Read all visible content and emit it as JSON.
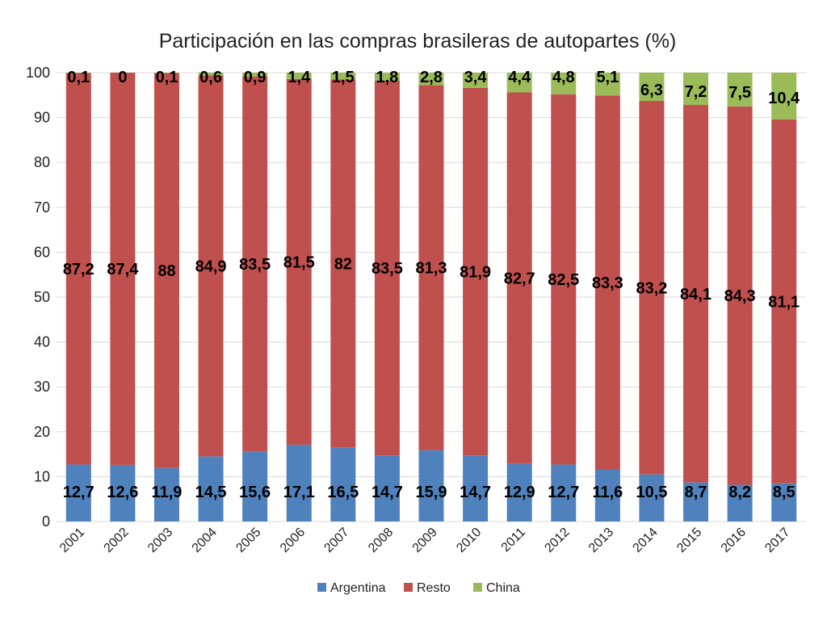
{
  "chart_data": {
    "type": "bar",
    "stacked": true,
    "title": "Participación en las compras brasileras de autopartes (%)",
    "xlabel": "",
    "ylabel": "",
    "ylim": [
      0,
      100
    ],
    "yticks": [
      0,
      10,
      20,
      30,
      40,
      50,
      60,
      70,
      80,
      90,
      100
    ],
    "grid": true,
    "legend_position": "bottom",
    "categories": [
      "2001",
      "2002",
      "2003",
      "2004",
      "2005",
      "2006",
      "2007",
      "2008",
      "2009",
      "2010",
      "2011",
      "2012",
      "2013",
      "2014",
      "2015",
      "2016",
      "2017"
    ],
    "series": [
      {
        "name": "Argentina",
        "color": "#4f81bd",
        "values": [
          12.7,
          12.6,
          11.9,
          14.5,
          15.6,
          17.1,
          16.5,
          14.7,
          15.9,
          14.7,
          12.9,
          12.7,
          11.6,
          10.5,
          8.7,
          8.2,
          8.5
        ],
        "labels": [
          "12,7",
          "12,6",
          "11,9",
          "14,5",
          "15,6",
          "17,1",
          "16,5",
          "14,7",
          "15,9",
          "14,7",
          "12,9",
          "12,7",
          "11,6",
          "10,5",
          "8,7",
          "8,2",
          "8,5"
        ]
      },
      {
        "name": "Resto",
        "color": "#c0504d",
        "values": [
          87.2,
          87.4,
          88,
          84.9,
          83.5,
          81.5,
          82,
          83.5,
          81.3,
          81.9,
          82.7,
          82.5,
          83.3,
          83.2,
          84.1,
          84.3,
          81.1
        ],
        "labels": [
          "87,2",
          "87,4",
          "88",
          "84,9",
          "83,5",
          "81,5",
          "82",
          "83,5",
          "81,3",
          "81,9",
          "82,7",
          "82,5",
          "83,3",
          "83,2",
          "84,1",
          "84,3",
          "81,1"
        ]
      },
      {
        "name": "China",
        "color": "#9bbb59",
        "values": [
          0.1,
          0,
          0.1,
          0.6,
          0.9,
          1.4,
          1.5,
          1.8,
          2.8,
          3.4,
          4.4,
          4.8,
          5.1,
          6.3,
          7.2,
          7.5,
          10.4
        ],
        "labels": [
          "0,1",
          "0",
          "0,1",
          "0,6",
          "0,9",
          "1,4",
          "1,5",
          "1,8",
          "2,8",
          "3,4",
          "4,4",
          "4,8",
          "5,1",
          "6,3",
          "7,2",
          "7,5",
          "10,4"
        ]
      }
    ]
  }
}
